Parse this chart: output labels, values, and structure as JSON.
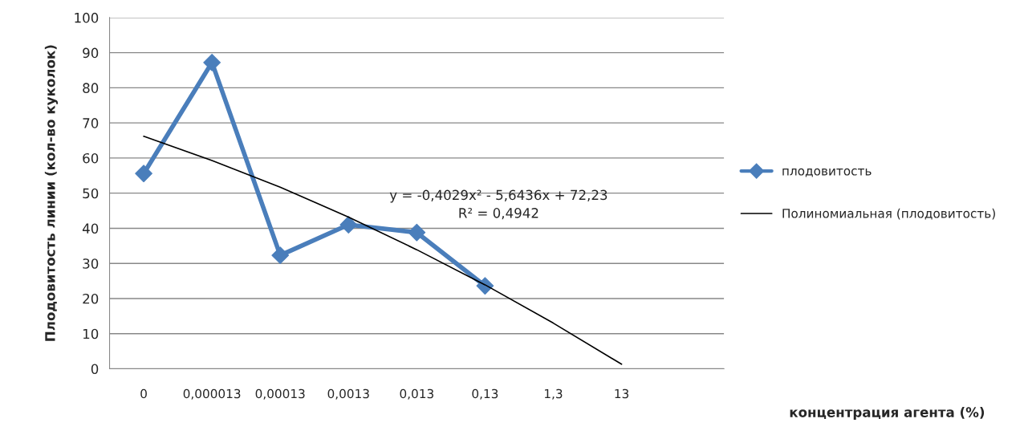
{
  "chart_data": {
    "type": "line",
    "xlabel": "концентрация агента (%)",
    "ylabel": "Плодовитость линии (кол-во куколок)",
    "categories": [
      "0",
      "0,000013",
      "0,00013",
      "0,0013",
      "0,013",
      "0,13",
      "1,3",
      "13",
      null
    ],
    "series": [
      {
        "name": "плодовитость",
        "color": "#4a7ebb",
        "marker": "diamond",
        "values": [
          55.6,
          87.2,
          32.3,
          41,
          38.8,
          23.6,
          null,
          null,
          null
        ]
      },
      {
        "name": "Полиномиальная (плодовитость)",
        "color": "#000000",
        "marker": "none",
        "x": [
          "0",
          "0,000013",
          "0,00013",
          "0,0013",
          "0,013",
          "0,13",
          "1,3",
          "13"
        ],
        "values": [
          66.2,
          59.3,
          51.7,
          43.2,
          33.9,
          23.9,
          13,
          1.3
        ]
      }
    ],
    "annotations": [
      "y = -0,4029x² - 5,6436x + 72,23\nR² = 0,4942"
    ],
    "ylim": [
      0,
      100
    ],
    "yticks": [
      0,
      10,
      20,
      30,
      40,
      50,
      60,
      70,
      80,
      90,
      100
    ],
    "grid": "y",
    "legend": "right"
  }
}
